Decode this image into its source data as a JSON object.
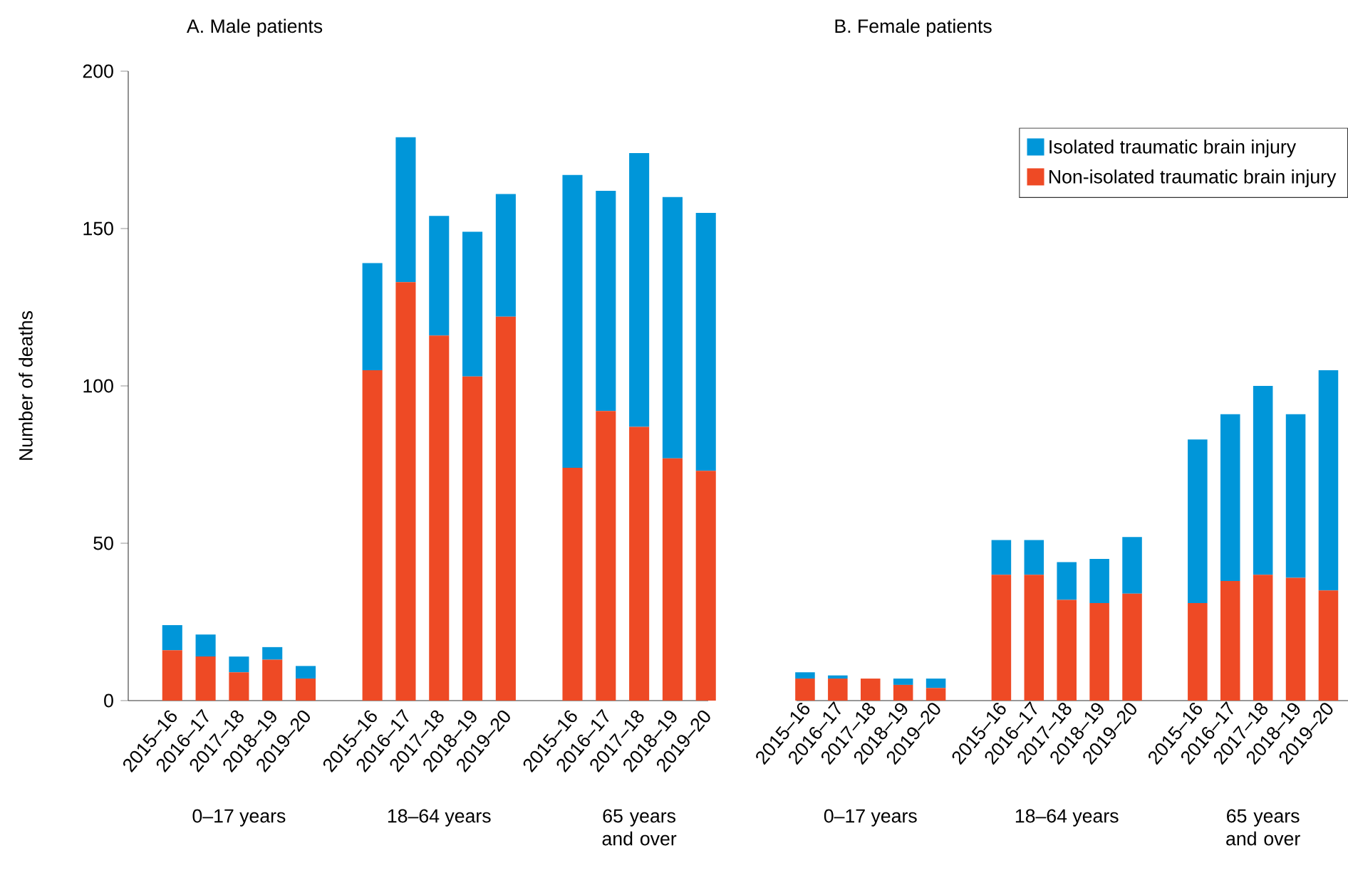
{
  "chart_data": [
    {
      "type": "bar",
      "title": "A. Male patients",
      "ylabel": "Number of deaths",
      "stacked": true,
      "categories": [
        "2015–16",
        "2016–17",
        "2017–18",
        "2018–19",
        "2019–20",
        null,
        "2015–16",
        "2016–17",
        "2017–18",
        "2018–19",
        "2019–20",
        null,
        "2015–16",
        "2016–17",
        "2017–18",
        "2018–19",
        "2019–20"
      ],
      "series": [
        {
          "color": "#ee4a25",
          "values": [
            16,
            14,
            9,
            13,
            7,
            null,
            105,
            133,
            116,
            103,
            122,
            null,
            74,
            92,
            87,
            77,
            73
          ]
        },
        {
          "color": "#0096d9",
          "values": [
            8,
            7,
            5,
            4,
            4,
            null,
            34,
            46,
            38,
            46,
            39,
            null,
            93,
            70,
            87,
            83,
            82
          ]
        }
      ],
      "ylim": [
        0,
        200
      ],
      "yticks": [
        0,
        50,
        100,
        150,
        200
      ],
      "annotations": [
        "0–17 years",
        "18–64 years",
        "65 years and over"
      ]
    },
    {
      "type": "bar",
      "title": "B. Female patients",
      "stacked": true,
      "categories": [
        "2015–16",
        "2016–17",
        "2017–18",
        "2018–19",
        "2019–20",
        null,
        "2015–16",
        "2016–17",
        "2017–18",
        "2018–19",
        "2019–20",
        null,
        "2015–16",
        "2016–17",
        "2017–18",
        "2018–19",
        "2019–20"
      ],
      "series": [
        {
          "name": "Non-isolated traumatic brain injury",
          "color": "#ee4a25",
          "values": [
            7,
            7,
            7,
            5,
            4,
            null,
            40,
            40,
            32,
            31,
            34,
            null,
            31,
            38,
            40,
            39,
            35
          ]
        },
        {
          "name": "Isolated traumatic brain injury",
          "color": "#0096d9",
          "values": [
            2,
            1,
            0,
            2,
            3,
            null,
            11,
            11,
            12,
            14,
            18,
            null,
            52,
            53,
            60,
            52,
            70
          ]
        }
      ],
      "ylim": [
        0,
        200
      ],
      "tick_labels": "x",
      "legend": "top right",
      "annotations": [
        "0–17 years",
        "18–64 years",
        "65 years and over"
      ]
    }
  ]
}
